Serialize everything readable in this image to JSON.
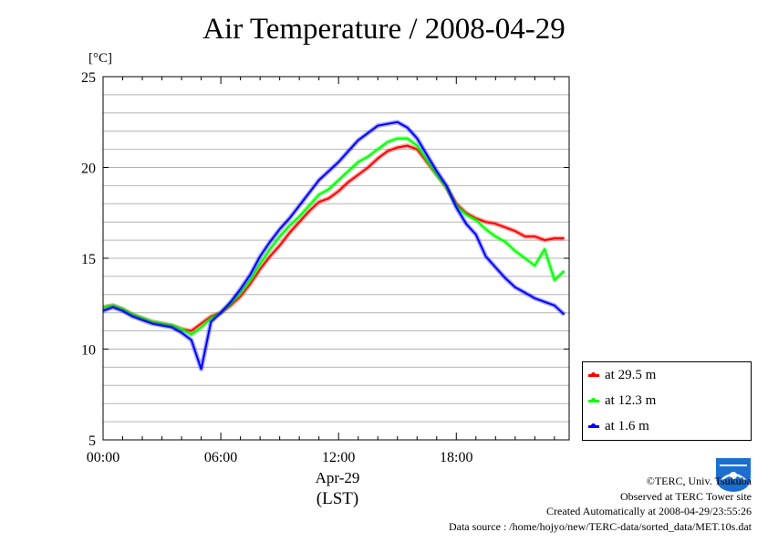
{
  "title": "Air Temperature / 2008-04-29",
  "unit_label": "[°C]",
  "x_date_label": "Apr-29",
  "x_axis_label": "(LST)",
  "legend": [
    {
      "label": "at 29.5 m",
      "color": "#ff0000"
    },
    {
      "label": "at 12.3 m",
      "color": "#00ff00"
    },
    {
      "label": "at 1.6 m",
      "color": "#0000ff"
    }
  ],
  "credits": {
    "copyright": "©TERC, Univ. Tsukuba",
    "observed": "Observed at TERC Tower site",
    "created": "Created Automatically at 2008-04-29/23:55:26",
    "source": "Data source : /home/hojyo/new/TERC-data/sorted_data/MET.10s.dat"
  },
  "logo_text": "TERC",
  "chart_data": {
    "type": "line",
    "title": "Air Temperature / 2008-04-29",
    "xlabel": "(LST)",
    "ylabel": "[°C]",
    "xlim": [
      0,
      23.75
    ],
    "ylim": [
      5,
      25
    ],
    "x_ticks": [
      {
        "value": 0,
        "label": "00:00"
      },
      {
        "value": 6,
        "label": "06:00"
      },
      {
        "value": 12,
        "label": "12:00"
      },
      {
        "value": 18,
        "label": "18:00"
      }
    ],
    "y_ticks": [
      5,
      10,
      15,
      20,
      25
    ],
    "grid": true,
    "legend_position": "right",
    "x_hours": [
      0,
      0.5,
      1,
      1.5,
      2,
      2.5,
      3,
      3.5,
      4,
      4.5,
      5,
      5.5,
      6,
      6.5,
      7,
      7.5,
      8,
      8.5,
      9,
      9.5,
      10,
      10.5,
      11,
      11.5,
      12,
      12.5,
      13,
      13.5,
      14,
      14.5,
      15,
      15.5,
      16,
      16.5,
      17,
      17.5,
      18,
      18.5,
      19,
      19.5,
      20,
      20.5,
      21,
      21.5,
      22,
      22.5,
      23,
      23.5
    ],
    "series": [
      {
        "name": "at 29.5 m",
        "color": "#ff0000",
        "values": [
          12.3,
          12.4,
          12.2,
          11.9,
          11.7,
          11.5,
          11.4,
          11.3,
          11.1,
          11.0,
          11.4,
          11.8,
          12.0,
          12.4,
          12.9,
          13.6,
          14.4,
          15.1,
          15.7,
          16.4,
          17.0,
          17.6,
          18.1,
          18.3,
          18.7,
          19.2,
          19.6,
          20.0,
          20.5,
          20.9,
          21.1,
          21.2,
          21.0,
          20.3,
          19.6,
          18.9,
          18.0,
          17.5,
          17.2,
          17.0,
          16.9,
          16.7,
          16.5,
          16.2,
          16.2,
          16.0,
          16.1,
          16.1
        ]
      },
      {
        "name": "at 12.3 m",
        "color": "#00ff00",
        "values": [
          12.3,
          12.4,
          12.2,
          11.9,
          11.7,
          11.5,
          11.4,
          11.3,
          11.1,
          10.8,
          11.2,
          11.7,
          12.0,
          12.5,
          13.1,
          13.8,
          14.7,
          15.5,
          16.2,
          16.8,
          17.3,
          17.9,
          18.5,
          18.8,
          19.3,
          19.8,
          20.3,
          20.6,
          21.0,
          21.4,
          21.6,
          21.6,
          21.2,
          20.4,
          19.6,
          18.9,
          17.9,
          17.4,
          17.1,
          16.6,
          16.2,
          15.9,
          15.4,
          15.0,
          14.6,
          15.5,
          13.8,
          14.3
        ]
      },
      {
        "name": "at 1.6 m",
        "color": "#0000ff",
        "values": [
          12.1,
          12.3,
          12.1,
          11.8,
          11.6,
          11.4,
          11.3,
          11.2,
          10.9,
          10.5,
          8.9,
          11.5,
          12.0,
          12.6,
          13.3,
          14.1,
          15.1,
          15.9,
          16.6,
          17.2,
          17.9,
          18.6,
          19.3,
          19.8,
          20.3,
          20.9,
          21.5,
          21.9,
          22.3,
          22.4,
          22.5,
          22.2,
          21.6,
          20.7,
          19.8,
          19.0,
          17.8,
          16.9,
          16.3,
          15.1,
          14.5,
          13.9,
          13.4,
          13.1,
          12.8,
          12.6,
          12.4,
          11.9
        ]
      }
    ]
  }
}
